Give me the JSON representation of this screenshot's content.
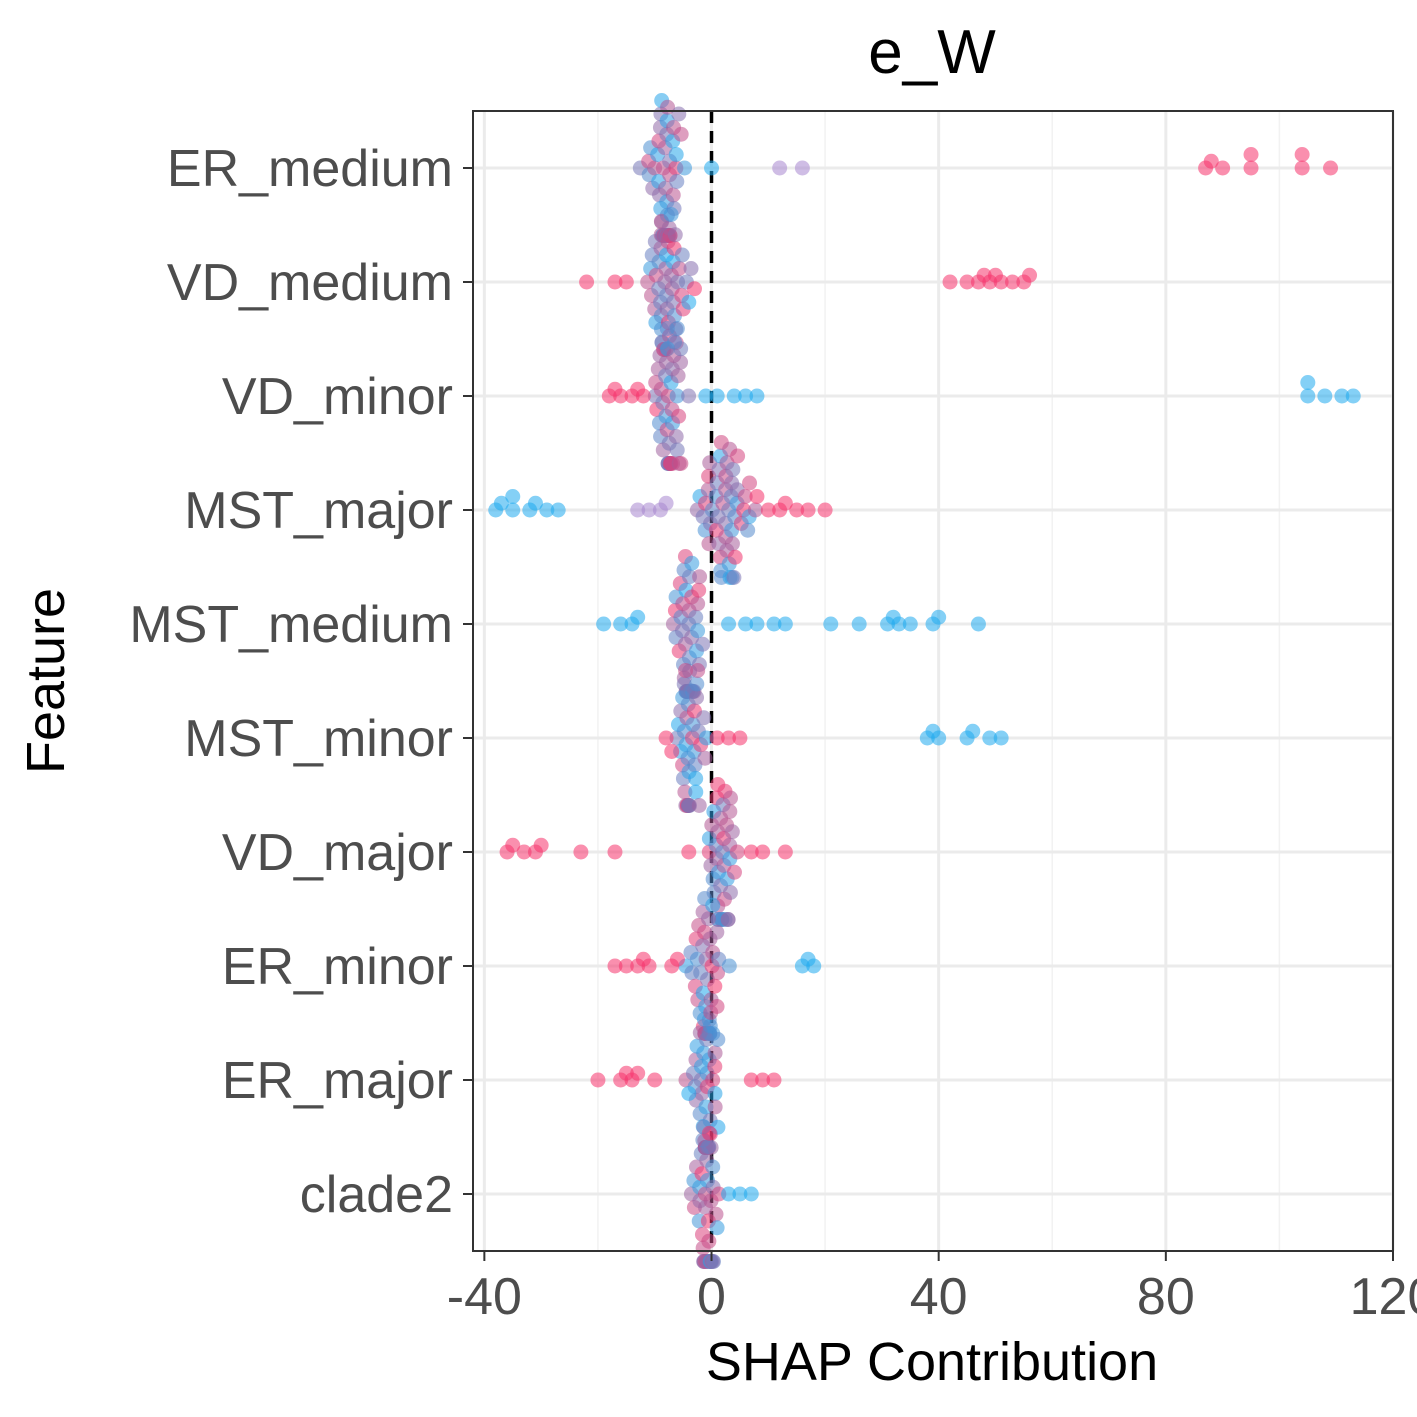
{
  "chart_data": {
    "type": "scatter",
    "title": "e_W",
    "xlabel": "SHAP Contribution",
    "ylabel": "Feature",
    "xlim": [
      -42,
      120
    ],
    "x_ticks": [
      -40,
      0,
      40,
      80,
      120
    ],
    "x_tick_labels": [
      "-40",
      "0",
      "40",
      "80",
      "120"
    ],
    "grid": true,
    "zero_line": "dashed",
    "colors": {
      "high": "#f5336b",
      "low": "#1fa9ee",
      "mid": "#a887cf"
    },
    "categories": [
      "ER_medium",
      "VD_medium",
      "VD_minor",
      "MST_major",
      "MST_medium",
      "MST_minor",
      "VD_major",
      "ER_minor",
      "ER_major",
      "clade2"
    ],
    "series": [
      {
        "feature": "ER_medium",
        "center": -8,
        "spread": 5,
        "n": 46,
        "outliers": [
          [
            12,
            "mid"
          ],
          [
            16,
            "mid"
          ],
          [
            0,
            "low"
          ],
          [
            87,
            "high"
          ],
          [
            88,
            "high"
          ],
          [
            90,
            "high"
          ],
          [
            95,
            "high"
          ],
          [
            95,
            "high"
          ],
          [
            104,
            "high"
          ],
          [
            104,
            "high"
          ],
          [
            109,
            "high"
          ]
        ]
      },
      {
        "feature": "VD_medium",
        "center": -8,
        "spread": 5,
        "n": 46,
        "outliers": [
          [
            -22,
            "high"
          ],
          [
            -17,
            "high"
          ],
          [
            -15,
            "high"
          ],
          [
            -3,
            "high"
          ],
          [
            -4,
            "low"
          ],
          [
            42,
            "high"
          ],
          [
            45,
            "high"
          ],
          [
            47,
            "high"
          ],
          [
            48,
            "high"
          ],
          [
            49,
            "high"
          ],
          [
            50,
            "high"
          ],
          [
            51,
            "high"
          ],
          [
            53,
            "high"
          ],
          [
            55,
            "high"
          ],
          [
            56,
            "high"
          ]
        ]
      },
      {
        "feature": "VD_minor",
        "center": -7,
        "spread": 5,
        "n": 44,
        "outliers": [
          [
            -18,
            "high"
          ],
          [
            -17,
            "high"
          ],
          [
            -16,
            "high"
          ],
          [
            -14,
            "high"
          ],
          [
            -13,
            "high"
          ],
          [
            -12,
            "high"
          ],
          [
            -1,
            "low"
          ],
          [
            1,
            "low"
          ],
          [
            4,
            "low"
          ],
          [
            6,
            "low"
          ],
          [
            8,
            "low"
          ],
          [
            105,
            "low"
          ],
          [
            105,
            "low"
          ],
          [
            108,
            "low"
          ],
          [
            111,
            "low"
          ],
          [
            113,
            "low"
          ]
        ]
      },
      {
        "feature": "MST_major",
        "center": 2,
        "spread": 6,
        "n": 52,
        "outliers": [
          [
            -38,
            "low"
          ],
          [
            -37,
            "low"
          ],
          [
            -35,
            "low"
          ],
          [
            -35,
            "low"
          ],
          [
            -32,
            "low"
          ],
          [
            -31,
            "low"
          ],
          [
            -29,
            "low"
          ],
          [
            -27,
            "low"
          ],
          [
            -13,
            "mid"
          ],
          [
            -11,
            "mid"
          ],
          [
            -9,
            "mid"
          ],
          [
            -8,
            "mid"
          ],
          [
            8,
            "high"
          ],
          [
            10,
            "high"
          ],
          [
            12,
            "high"
          ],
          [
            13,
            "high"
          ],
          [
            15,
            "high"
          ],
          [
            17,
            "high"
          ],
          [
            20,
            "high"
          ]
        ]
      },
      {
        "feature": "MST_medium",
        "center": -4,
        "spread": 4,
        "n": 40,
        "outliers": [
          [
            -19,
            "low"
          ],
          [
            -16,
            "low"
          ],
          [
            -14,
            "low"
          ],
          [
            -13,
            "low"
          ],
          [
            3,
            "low"
          ],
          [
            6,
            "low"
          ],
          [
            8,
            "low"
          ],
          [
            11,
            "low"
          ],
          [
            13,
            "low"
          ],
          [
            21,
            "low"
          ],
          [
            26,
            "low"
          ],
          [
            31,
            "low"
          ],
          [
            32,
            "low"
          ],
          [
            33,
            "low"
          ],
          [
            35,
            "low"
          ],
          [
            39,
            "low"
          ],
          [
            40,
            "low"
          ],
          [
            47,
            "low"
          ]
        ]
      },
      {
        "feature": "MST_minor",
        "center": -4,
        "spread": 4,
        "n": 40,
        "outliers": [
          [
            -8,
            "high"
          ],
          [
            -7,
            "high"
          ],
          [
            1,
            "high"
          ],
          [
            3,
            "high"
          ],
          [
            5,
            "high"
          ],
          [
            38,
            "low"
          ],
          [
            39,
            "low"
          ],
          [
            40,
            "low"
          ],
          [
            45,
            "low"
          ],
          [
            46,
            "low"
          ],
          [
            49,
            "low"
          ],
          [
            51,
            "low"
          ]
        ]
      },
      {
        "feature": "VD_major",
        "center": 2,
        "spread": 4,
        "n": 40,
        "outliers": [
          [
            -36,
            "high"
          ],
          [
            -35,
            "high"
          ],
          [
            -33,
            "high"
          ],
          [
            -31,
            "high"
          ],
          [
            -30,
            "high"
          ],
          [
            -23,
            "high"
          ],
          [
            -17,
            "high"
          ],
          [
            -4,
            "high"
          ],
          [
            7,
            "high"
          ],
          [
            9,
            "high"
          ],
          [
            13,
            "high"
          ]
        ]
      },
      {
        "feature": "ER_minor",
        "center": -1,
        "spread": 4,
        "n": 40,
        "outliers": [
          [
            -17,
            "high"
          ],
          [
            -15,
            "high"
          ],
          [
            -13,
            "high"
          ],
          [
            -12,
            "high"
          ],
          [
            -11,
            "high"
          ],
          [
            -7,
            "high"
          ],
          [
            -6,
            "high"
          ],
          [
            16,
            "low"
          ],
          [
            17,
            "low"
          ],
          [
            18,
            "low"
          ]
        ]
      },
      {
        "feature": "ER_major",
        "center": -1,
        "spread": 4,
        "n": 40,
        "outliers": [
          [
            -20,
            "high"
          ],
          [
            -16,
            "high"
          ],
          [
            -15,
            "high"
          ],
          [
            -14,
            "high"
          ],
          [
            -13,
            "high"
          ],
          [
            -10,
            "high"
          ],
          [
            -4,
            "low"
          ],
          [
            7,
            "high"
          ],
          [
            9,
            "high"
          ],
          [
            11,
            "high"
          ]
        ]
      },
      {
        "feature": "clade2",
        "center": -1,
        "spread": 3,
        "n": 40,
        "outliers": [
          [
            3,
            "low"
          ],
          [
            5,
            "low"
          ],
          [
            7,
            "low"
          ]
        ]
      }
    ]
  }
}
